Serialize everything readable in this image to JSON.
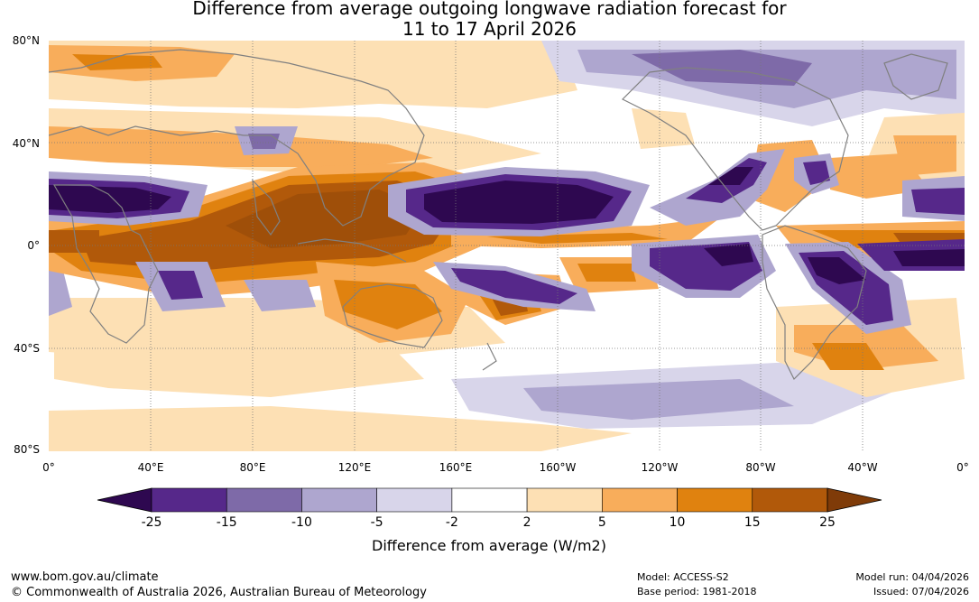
{
  "title": {
    "line1": "Difference from average outgoing longwave radiation forecast for",
    "line2": "11 to 17 April 2026"
  },
  "map": {
    "lat_labels": [
      "80°N",
      "40°N",
      "0°",
      "40°S",
      "80°S"
    ],
    "lon_labels": [
      "0°",
      "40°E",
      "80°E",
      "120°E",
      "160°E",
      "160°W",
      "120°W",
      "80°W",
      "40°W",
      "0°"
    ]
  },
  "colorbar": {
    "ticks": [
      "-25",
      "-15",
      "-10",
      "-5",
      "-2",
      "2",
      "5",
      "10",
      "15",
      "25"
    ],
    "colors": [
      "#2e0850",
      "#56288a",
      "#7e6aa8",
      "#aea6cf",
      "#d8d5ea",
      "#ffffff",
      "#fde0b4",
      "#f8ad5b",
      "#e0820f",
      "#b1590a",
      "#7f3b08"
    ],
    "label": "Difference from average (W/m2)"
  },
  "footer": {
    "url": "www.bom.gov.au/climate",
    "copyright": "© Commonwealth of Australia 2026, Australian Bureau of Meteorology",
    "model": "Model: ACCESS-S2",
    "base_period": "Base period: 1981-2018",
    "model_run": "Model run: 04/04/2026",
    "issued": "Issued: 07/04/2026"
  }
}
